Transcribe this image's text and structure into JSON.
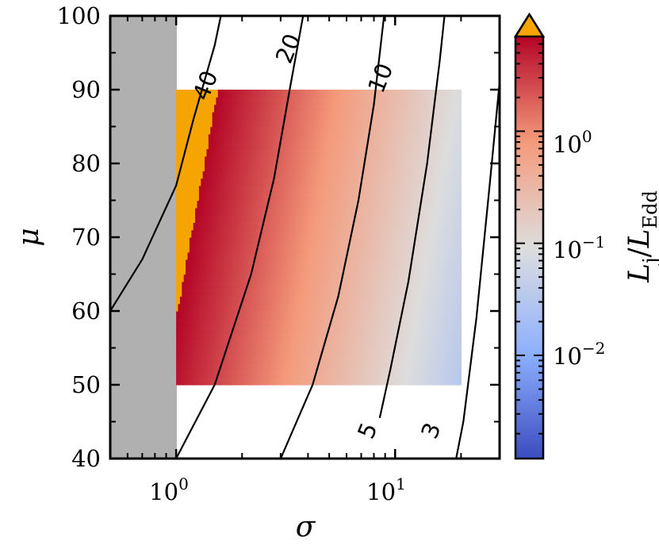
{
  "chart_data": {
    "type": "heatmap",
    "x_axis": {
      "label": "σ",
      "scale": "log",
      "range": [
        0.5,
        30
      ],
      "tick_labels": [
        {
          "value": 1,
          "base": "10",
          "exp": "0"
        },
        {
          "value": 10,
          "base": "10",
          "exp": "1"
        }
      ]
    },
    "y_axis": {
      "label": "μ",
      "scale": "linear",
      "range": [
        40,
        100
      ],
      "ticks": [
        40,
        50,
        60,
        70,
        80,
        90,
        100
      ],
      "tick_labels": [
        "40",
        "50",
        "60",
        "70",
        "80",
        "90",
        "100"
      ]
    },
    "excluded_region": {
      "x_range": [
        0.5,
        1.0
      ],
      "color": "#b0b0b0"
    },
    "heatmap_region": {
      "x_range": [
        1.0,
        20.0
      ],
      "y_range": [
        50,
        90
      ]
    },
    "over_range_color": "#f5a400",
    "colormap": "coolwarm",
    "colorbar": {
      "label_main": "L",
      "label_sub1": "j",
      "label_sep": "/",
      "label_sub2": "Edd",
      "scale": "log",
      "range": [
        0.0012,
        7
      ],
      "extend": "max",
      "tick_labels": [
        {
          "value": 0.01,
          "base": "10",
          "exp": "−2"
        },
        {
          "value": 0.1,
          "base": "10",
          "exp": "−1"
        },
        {
          "value": 1,
          "base": "10",
          "exp": "0"
        }
      ]
    },
    "contours": [
      {
        "level": "40",
        "points": [
          [
            0.5,
            60
          ],
          [
            0.7,
            67
          ],
          [
            1.0,
            77
          ],
          [
            1.2,
            86
          ],
          [
            1.5,
            96
          ],
          [
            1.6,
            100
          ]
        ],
        "label_at": [
          1.38,
          90.5
        ]
      },
      {
        "level": "20",
        "points": [
          [
            1.0,
            40
          ],
          [
            1.5,
            50
          ],
          [
            2.2,
            65
          ],
          [
            2.8,
            78
          ],
          [
            3.3,
            90
          ],
          [
            3.8,
            100
          ]
        ],
        "label_at": [
          3.3,
          95.5
        ]
      },
      {
        "level": "10",
        "points": [
          [
            3.0,
            40
          ],
          [
            4.2,
            50
          ],
          [
            5.5,
            62
          ],
          [
            6.8,
            75
          ],
          [
            8.0,
            88
          ],
          [
            8.9,
            100
          ]
        ],
        "label_at": [
          8.7,
          91.5
        ]
      },
      {
        "level": "5",
        "points": [
          [
            8.5,
            45.5
          ],
          [
            9.5,
            52
          ],
          [
            11.5,
            64
          ],
          [
            14.0,
            80
          ],
          [
            16.0,
            94
          ],
          [
            16.8,
            100
          ]
        ],
        "label_at": [
          7.6,
          43.7
        ]
      },
      {
        "level": "3",
        "points": [
          [
            19.0,
            40
          ],
          [
            20.5,
            45
          ],
          [
            23.5,
            59
          ],
          [
            27.0,
            77
          ],
          [
            30.0,
            91
          ]
        ],
        "label_at": [
          14.8,
          43.7
        ]
      }
    ]
  }
}
